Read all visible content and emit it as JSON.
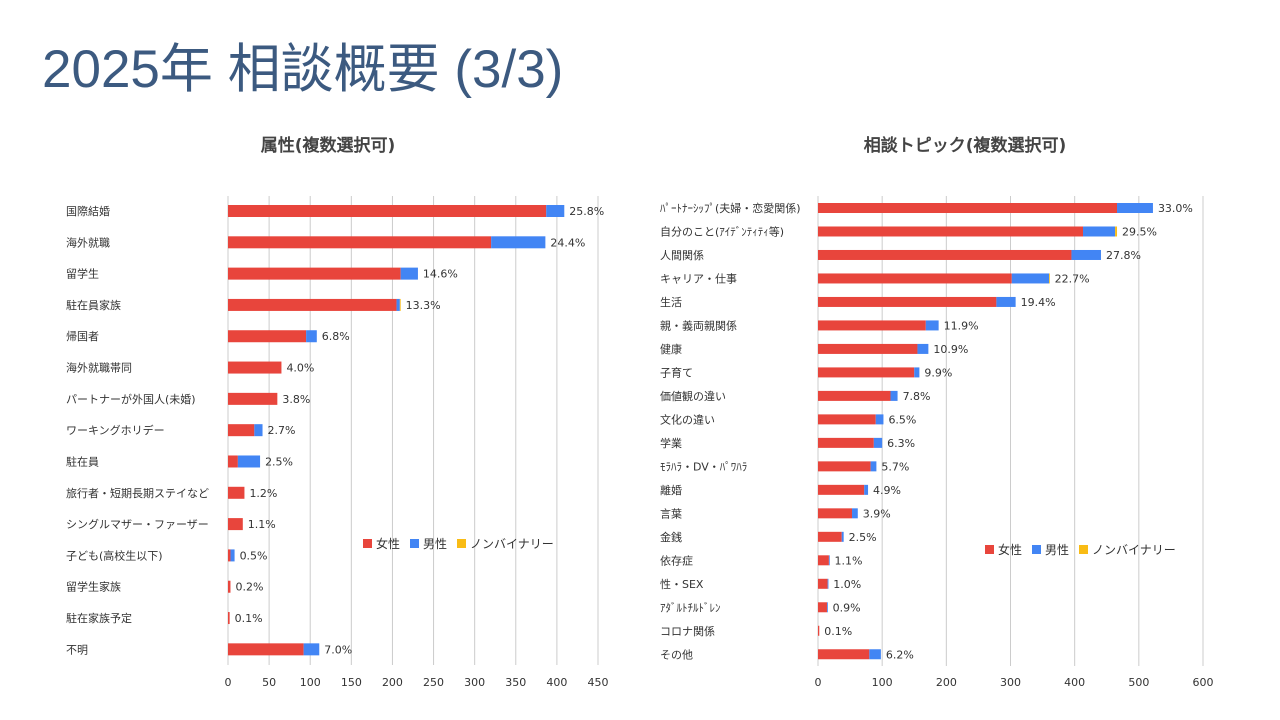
{
  "title": "2025年 相談概要 (3/3)",
  "colors": {
    "female": "#e8453c",
    "male": "#4285f4",
    "nonbinary": "#f9bc15",
    "grid": "#cccccc",
    "text": "#333333",
    "title": "#3c5a80"
  },
  "chart_data": [
    {
      "type": "bar",
      "orientation": "horizontal",
      "stacked": true,
      "title": "属性(複数選択可)",
      "legend": [
        "女性",
        "男性",
        "ノンバイナリー"
      ],
      "legend_position": "right",
      "xlim": [
        0,
        450
      ],
      "xticks": [
        0,
        50,
        100,
        150,
        200,
        250,
        300,
        350,
        400,
        450
      ],
      "categories": [
        "国際結婚",
        "海外就職",
        "留学生",
        "駐在員家族",
        "帰国者",
        "海外就職帯同",
        "パートナーが外国人(未婚)",
        "ワーキングホリデー",
        "駐在員",
        "旅行者・短期長期ステイなど",
        "シングルマザー・ファーザー",
        "子ども(高校生以下)",
        "留学生家族",
        "駐在家族予定",
        "不明"
      ],
      "series": [
        {
          "name": "女性",
          "values": [
            387,
            320,
            210,
            205,
            95,
            65,
            60,
            32,
            12,
            20,
            18,
            3,
            3,
            2,
            92
          ]
        },
        {
          "name": "男性",
          "values": [
            22,
            66,
            21,
            4,
            13,
            0,
            0,
            10,
            27,
            0,
            0,
            5,
            0,
            0,
            19
          ]
        },
        {
          "name": "ノンバイナリー",
          "values": [
            0,
            0,
            0,
            1,
            0,
            0,
            0,
            0,
            0,
            0,
            0,
            0,
            0,
            0,
            0
          ]
        }
      ],
      "data_labels": [
        "25.8%",
        "24.4%",
        "14.6%",
        "13.3%",
        "6.8%",
        "4.0%",
        "3.8%",
        "2.7%",
        "2.5%",
        "1.2%",
        "1.1%",
        "0.5%",
        "0.2%",
        "0.1%",
        "7.0%"
      ]
    },
    {
      "type": "bar",
      "orientation": "horizontal",
      "stacked": true,
      "title": "相談トピック(複数選択可)",
      "legend": [
        "女性",
        "男性",
        "ノンバイナリー"
      ],
      "legend_position": "right",
      "xlim": [
        0,
        600
      ],
      "xticks": [
        0,
        100,
        200,
        300,
        400,
        500,
        600
      ],
      "categories": [
        "ﾊﾟｰﾄﾅｰｼｯﾌﾟ(夫婦・恋愛関係)",
        "自分のこと(ｱｲﾃﾞﾝﾃｨﾃｨ等)",
        "人間関係",
        "キャリア・仕事",
        "生活",
        "親・義両親関係",
        "健康",
        "子育て",
        "価値観の違い",
        "文化の違い",
        "学業",
        "ﾓﾗﾊﾗ・DV・ﾊﾟﾜﾊﾗ",
        "離婚",
        "言葉",
        "金銭",
        "依存症",
        "性・SEX",
        "ｱﾀﾞﾙﾄﾁﾙﾄﾞﾚﾝ",
        "コロナ関係",
        "その他"
      ],
      "series": [
        {
          "name": "女性",
          "values": [
            466,
            413,
            395,
            302,
            278,
            168,
            155,
            150,
            113,
            90,
            87,
            82,
            72,
            53,
            37,
            17,
            15,
            14,
            2,
            80
          ]
        },
        {
          "name": "男性",
          "values": [
            56,
            50,
            46,
            58,
            30,
            20,
            17,
            8,
            11,
            12,
            13,
            9,
            6,
            9,
            3,
            1,
            1,
            1,
            0,
            18
          ]
        },
        {
          "name": "ノンバイナリー",
          "values": [
            0,
            3,
            0,
            1,
            0,
            0,
            0,
            0,
            0,
            0,
            0,
            0,
            0,
            0,
            0,
            0,
            0,
            0,
            0,
            0
          ]
        }
      ],
      "data_labels": [
        "33.0%",
        "29.5%",
        "27.8%",
        "22.7%",
        "19.4%",
        "11.9%",
        "10.9%",
        "9.9%",
        "7.8%",
        "6.5%",
        "6.3%",
        "5.7%",
        "4.9%",
        "3.9%",
        "2.5%",
        "1.1%",
        "1.0%",
        "0.9%",
        "0.1%",
        "6.2%"
      ]
    }
  ]
}
